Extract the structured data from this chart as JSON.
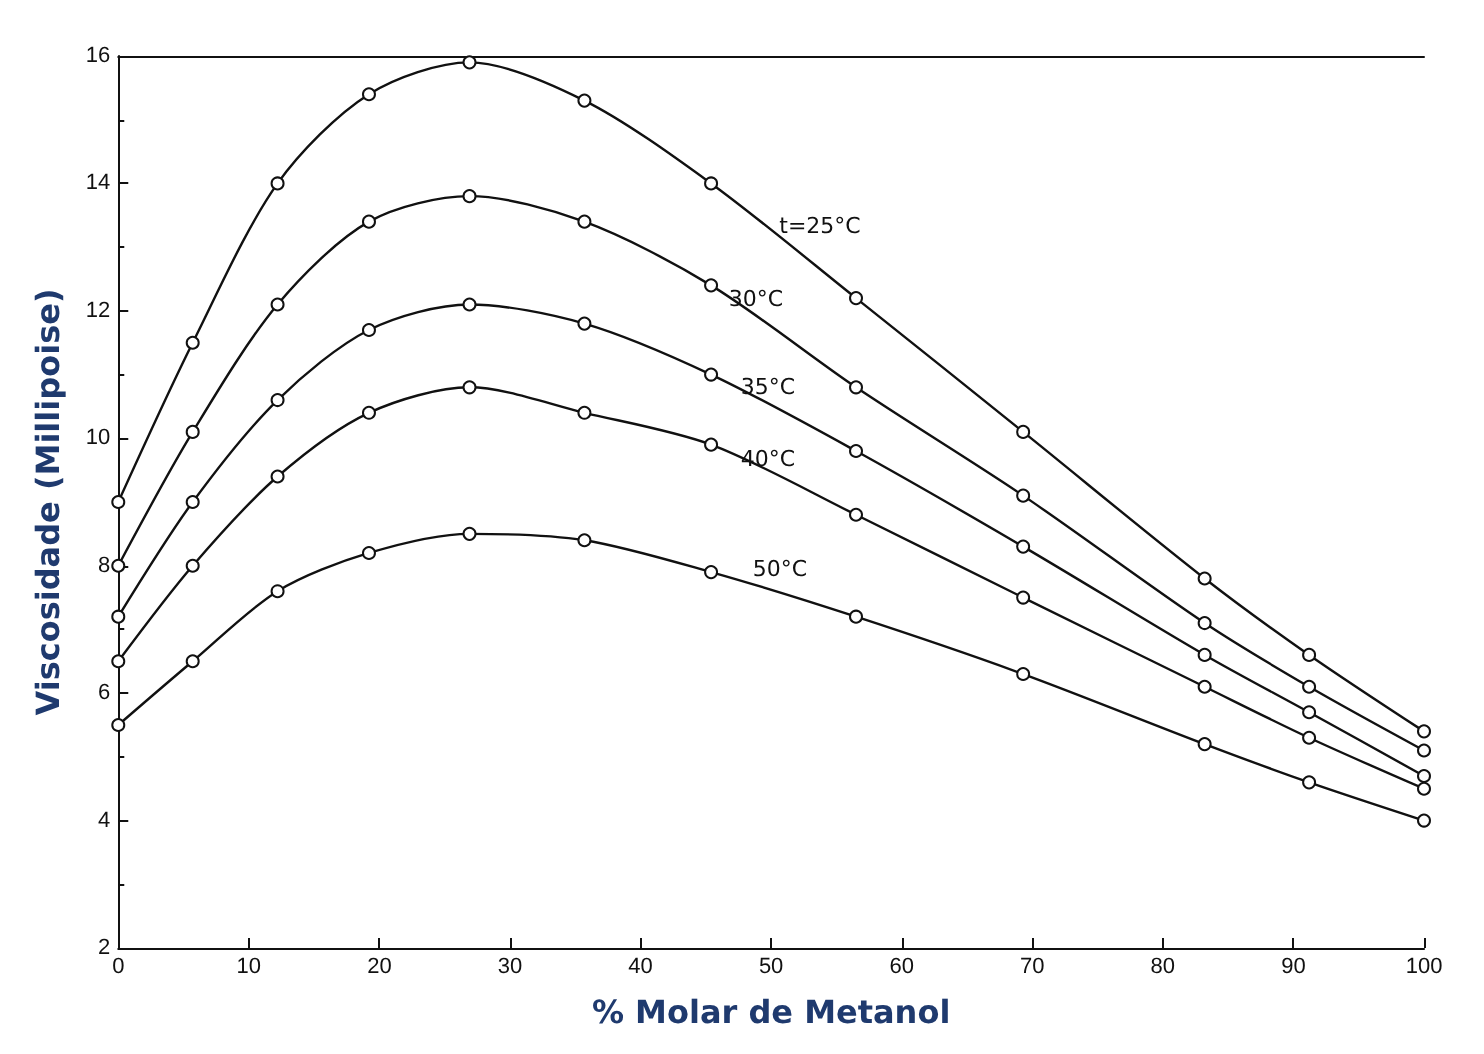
{
  "chart_data": {
    "type": "line",
    "xlabel": "% Molar de Metanol",
    "ylabel": "Viscosidade (Millipoise)",
    "x": [
      0,
      5.7,
      12.2,
      19.2,
      26.9,
      35.7,
      45.4,
      56.5,
      69.3,
      83.2,
      91.2,
      100
    ],
    "series": [
      {
        "name": "t=25°C",
        "color": "#111111",
        "values": [
          9.0,
          11.5,
          14.0,
          15.4,
          15.9,
          15.3,
          14.0,
          12.2,
          10.1,
          7.8,
          6.6,
          5.4
        ]
      },
      {
        "name": "30°C",
        "color": "#111111",
        "values": [
          8.0,
          10.1,
          12.1,
          13.4,
          13.8,
          13.4,
          12.4,
          10.8,
          9.1,
          7.1,
          6.1,
          5.1
        ]
      },
      {
        "name": "35°C",
        "color": "#111111",
        "values": [
          7.2,
          9.0,
          10.6,
          11.7,
          12.1,
          11.8,
          11.0,
          9.8,
          8.3,
          6.6,
          5.7,
          4.7
        ]
      },
      {
        "name": "40°C",
        "color": "#111111",
        "values": [
          6.5,
          8.0,
          9.4,
          10.4,
          10.8,
          10.4,
          9.9,
          8.8,
          7.5,
          6.1,
          5.3,
          4.5
        ]
      },
      {
        "name": "50°C",
        "color": "#111111",
        "values": [
          5.5,
          6.5,
          7.6,
          8.2,
          8.5,
          8.4,
          7.9,
          7.2,
          6.3,
          5.2,
          4.6,
          4.0
        ]
      }
    ],
    "xlim": [
      0,
      100
    ],
    "xticks": [
      0,
      10,
      20,
      30,
      40,
      50,
      60,
      70,
      80,
      90,
      100
    ],
    "ylim": [
      2,
      16
    ],
    "yticks": [
      2,
      4,
      6,
      8,
      10,
      12,
      14,
      16
    ],
    "grid": false,
    "legend": false,
    "marker": "circle",
    "line_style": "solid"
  }
}
